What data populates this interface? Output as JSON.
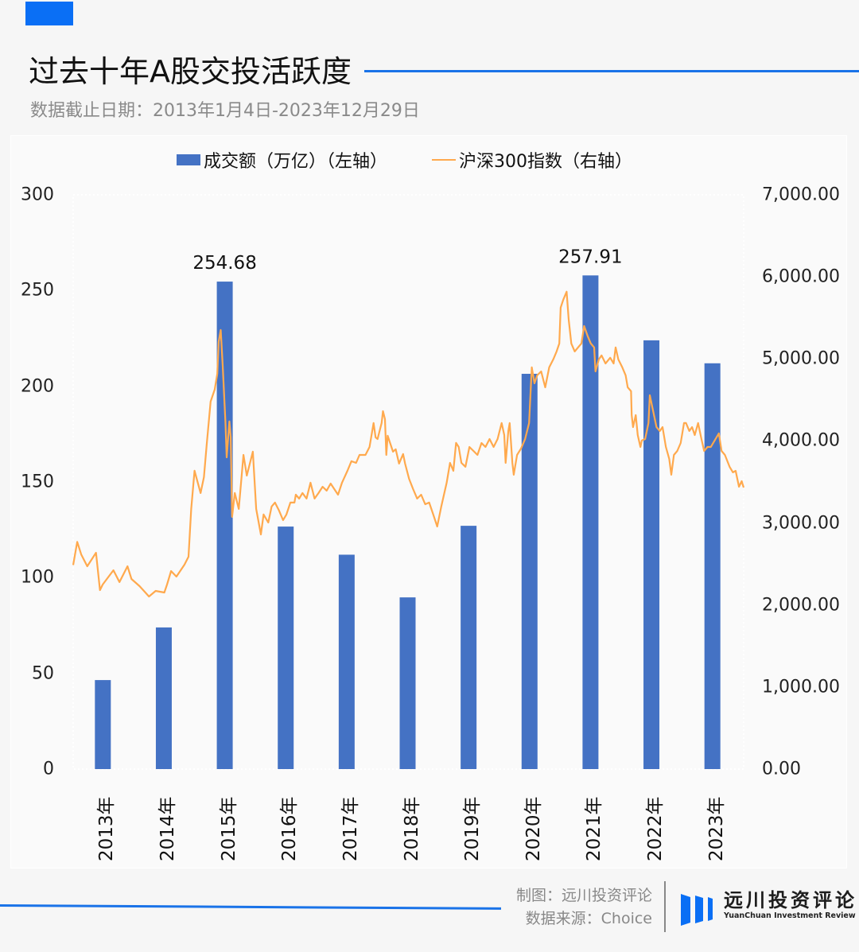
{
  "header": {
    "title": "过去十年A股交投活跃度",
    "subtitle": "数据截止日期：2013年1月4日-2023年12月29日"
  },
  "colors": {
    "accent": "#0a6ff5",
    "rule": "#1a73e8",
    "bar": "#4472c4",
    "line": "#ffa94d",
    "panel": "#fafafa",
    "page": "#f6f6f6"
  },
  "legend": {
    "bar_label": "成交额（万亿）（左轴）",
    "line_label": "沪深300指数（右轴）"
  },
  "footer": {
    "credit_line1": "制图：远川投资评论",
    "credit_line2": "数据来源：Choice",
    "brand_cn": "远川投资评论",
    "brand_en": "YuanChuan Investment Review",
    "logo_icon": "three-bars-logo-icon"
  },
  "chart_data": {
    "type": "bar+line",
    "title": "过去十年A股交投活跃度",
    "subtitle": "数据截止日期：2013年1月4日-2023年12月29日",
    "categories": [
      "2013年",
      "2014年",
      "2015年",
      "2016年",
      "2017年",
      "2018年",
      "2019年",
      "2020年",
      "2021年",
      "2022年",
      "2023年"
    ],
    "left_axis": {
      "label": "成交额（万亿）",
      "ylim": [
        0,
        300
      ],
      "ticks": [
        "0",
        "50",
        "100",
        "150",
        "200",
        "250",
        "300"
      ]
    },
    "right_axis": {
      "label": "沪深300指数",
      "ylim": [
        0,
        7000
      ],
      "ticks": [
        "0.00",
        "1,000.00",
        "2,000.00",
        "3,000.00",
        "4,000.00",
        "5,000.00",
        "6,000.00",
        "7,000.00"
      ]
    },
    "series": [
      {
        "name": "成交额（万亿）（左轴）",
        "type": "bar",
        "axis": "left",
        "values": [
          46.5,
          74.0,
          254.68,
          126.7,
          112.0,
          89.7,
          127.1,
          206.5,
          257.91,
          224.0,
          212.0
        ],
        "data_labels": {
          "2": "254.68",
          "8": "257.91"
        }
      },
      {
        "name": "沪深300指数（右轴）",
        "type": "line",
        "axis": "right",
        "x_range": [
          "2013-01-04",
          "2023-12-29"
        ],
        "points": [
          [
            0.0,
            2488
          ],
          [
            0.006,
            2770
          ],
          [
            0.012,
            2617
          ],
          [
            0.021,
            2472
          ],
          [
            0.034,
            2637
          ],
          [
            0.04,
            2181
          ],
          [
            0.044,
            2249
          ],
          [
            0.06,
            2424
          ],
          [
            0.069,
            2279
          ],
          [
            0.081,
            2472
          ],
          [
            0.087,
            2317
          ],
          [
            0.099,
            2230
          ],
          [
            0.113,
            2104
          ],
          [
            0.123,
            2172
          ],
          [
            0.136,
            2152
          ],
          [
            0.14,
            2249
          ],
          [
            0.146,
            2414
          ],
          [
            0.154,
            2346
          ],
          [
            0.166,
            2492
          ],
          [
            0.172,
            2589
          ],
          [
            0.176,
            3171
          ],
          [
            0.181,
            3637
          ],
          [
            0.19,
            3365
          ],
          [
            0.195,
            3559
          ],
          [
            0.199,
            3947
          ],
          [
            0.205,
            4480
          ],
          [
            0.211,
            4626
          ],
          [
            0.215,
            4820
          ],
          [
            0.217,
            5208
          ],
          [
            0.22,
            5353
          ],
          [
            0.223,
            4917
          ],
          [
            0.227,
            4238
          ],
          [
            0.229,
            3801
          ],
          [
            0.233,
            4238
          ],
          [
            0.235,
            4044
          ],
          [
            0.237,
            3074
          ],
          [
            0.241,
            3365
          ],
          [
            0.247,
            3171
          ],
          [
            0.254,
            3830
          ],
          [
            0.259,
            3578
          ],
          [
            0.268,
            3869
          ],
          [
            0.273,
            3171
          ],
          [
            0.28,
            2860
          ],
          [
            0.284,
            3103
          ],
          [
            0.291,
            3006
          ],
          [
            0.296,
            3200
          ],
          [
            0.301,
            3249
          ],
          [
            0.307,
            3152
          ],
          [
            0.313,
            3035
          ],
          [
            0.318,
            3103
          ],
          [
            0.324,
            3249
          ],
          [
            0.33,
            3249
          ],
          [
            0.332,
            3345
          ],
          [
            0.337,
            3297
          ],
          [
            0.342,
            3365
          ],
          [
            0.348,
            3297
          ],
          [
            0.354,
            3491
          ],
          [
            0.36,
            3297
          ],
          [
            0.366,
            3365
          ],
          [
            0.372,
            3442
          ],
          [
            0.378,
            3394
          ],
          [
            0.384,
            3481
          ],
          [
            0.395,
            3345
          ],
          [
            0.401,
            3491
          ],
          [
            0.409,
            3636
          ],
          [
            0.415,
            3753
          ],
          [
            0.422,
            3733
          ],
          [
            0.427,
            3830
          ],
          [
            0.436,
            3830
          ],
          [
            0.442,
            3927
          ],
          [
            0.446,
            4121
          ],
          [
            0.448,
            4218
          ],
          [
            0.451,
            4044
          ],
          [
            0.454,
            4024
          ],
          [
            0.46,
            4218
          ],
          [
            0.462,
            4363
          ],
          [
            0.465,
            4266
          ],
          [
            0.467,
            3830
          ],
          [
            0.469,
            4063
          ],
          [
            0.477,
            3869
          ],
          [
            0.481,
            3898
          ],
          [
            0.486,
            3724
          ],
          [
            0.492,
            3840
          ],
          [
            0.495,
            3724
          ],
          [
            0.501,
            3539
          ],
          [
            0.507,
            3413
          ],
          [
            0.513,
            3297
          ],
          [
            0.519,
            3345
          ],
          [
            0.525,
            3229
          ],
          [
            0.531,
            3249
          ],
          [
            0.537,
            3103
          ],
          [
            0.543,
            2957
          ],
          [
            0.549,
            3200
          ],
          [
            0.557,
            3491
          ],
          [
            0.562,
            3733
          ],
          [
            0.567,
            3636
          ],
          [
            0.571,
            3976
          ],
          [
            0.575,
            3927
          ],
          [
            0.579,
            3733
          ],
          [
            0.585,
            3685
          ],
          [
            0.591,
            3927
          ],
          [
            0.597,
            3878
          ],
          [
            0.603,
            3830
          ],
          [
            0.609,
            3975
          ],
          [
            0.615,
            3927
          ],
          [
            0.621,
            4024
          ],
          [
            0.627,
            3927
          ],
          [
            0.633,
            4024
          ],
          [
            0.639,
            4218
          ],
          [
            0.643,
            4072
          ],
          [
            0.645,
            3733
          ],
          [
            0.649,
            4121
          ],
          [
            0.651,
            4218
          ],
          [
            0.655,
            3733
          ],
          [
            0.657,
            3588
          ],
          [
            0.662,
            3830
          ],
          [
            0.668,
            3908
          ],
          [
            0.674,
            4024
          ],
          [
            0.68,
            4218
          ],
          [
            0.684,
            4897
          ],
          [
            0.688,
            4703
          ],
          [
            0.692,
            4800
          ],
          [
            0.698,
            4848
          ],
          [
            0.704,
            4654
          ],
          [
            0.71,
            4897
          ],
          [
            0.716,
            4994
          ],
          [
            0.721,
            5091
          ],
          [
            0.725,
            5188
          ],
          [
            0.727,
            5625
          ],
          [
            0.731,
            5722
          ],
          [
            0.736,
            5819
          ],
          [
            0.739,
            5479
          ],
          [
            0.743,
            5188
          ],
          [
            0.748,
            5091
          ],
          [
            0.753,
            5140
          ],
          [
            0.758,
            5188
          ],
          [
            0.762,
            5401
          ],
          [
            0.767,
            5285
          ],
          [
            0.772,
            5188
          ],
          [
            0.777,
            5140
          ],
          [
            0.779,
            4848
          ],
          [
            0.784,
            4994
          ],
          [
            0.788,
            5043
          ],
          [
            0.794,
            4945
          ],
          [
            0.801,
            5014
          ],
          [
            0.806,
            4945
          ],
          [
            0.809,
            5140
          ],
          [
            0.813,
            4994
          ],
          [
            0.819,
            4897
          ],
          [
            0.824,
            4800
          ],
          [
            0.827,
            4654
          ],
          [
            0.832,
            4606
          ],
          [
            0.833,
            4315
          ],
          [
            0.835,
            4169
          ],
          [
            0.839,
            4315
          ],
          [
            0.842,
            4072
          ],
          [
            0.846,
            3927
          ],
          [
            0.848,
            4005
          ],
          [
            0.853,
            4024
          ],
          [
            0.858,
            4218
          ],
          [
            0.86,
            4557
          ],
          [
            0.865,
            4363
          ],
          [
            0.87,
            4169
          ],
          [
            0.875,
            4121
          ],
          [
            0.879,
            4169
          ],
          [
            0.884,
            3927
          ],
          [
            0.889,
            3781
          ],
          [
            0.892,
            3588
          ],
          [
            0.896,
            3830
          ],
          [
            0.901,
            3878
          ],
          [
            0.906,
            3975
          ],
          [
            0.911,
            4218
          ],
          [
            0.914,
            4218
          ],
          [
            0.919,
            4121
          ],
          [
            0.923,
            4169
          ],
          [
            0.927,
            4072
          ],
          [
            0.932,
            4218
          ],
          [
            0.937,
            4024
          ],
          [
            0.941,
            3878
          ],
          [
            0.946,
            3927
          ],
          [
            0.951,
            3927
          ],
          [
            0.958,
            4024
          ],
          [
            0.963,
            4092
          ],
          [
            0.967,
            3878
          ],
          [
            0.972,
            3830
          ],
          [
            0.979,
            3685
          ],
          [
            0.984,
            3617
          ],
          [
            0.988,
            3636
          ],
          [
            0.993,
            3442
          ],
          [
            0.997,
            3510
          ],
          [
            1.0,
            3431
          ]
        ]
      }
    ],
    "legend_position": "top",
    "grid": false,
    "xlabel": "",
    "ylabel": ""
  }
}
